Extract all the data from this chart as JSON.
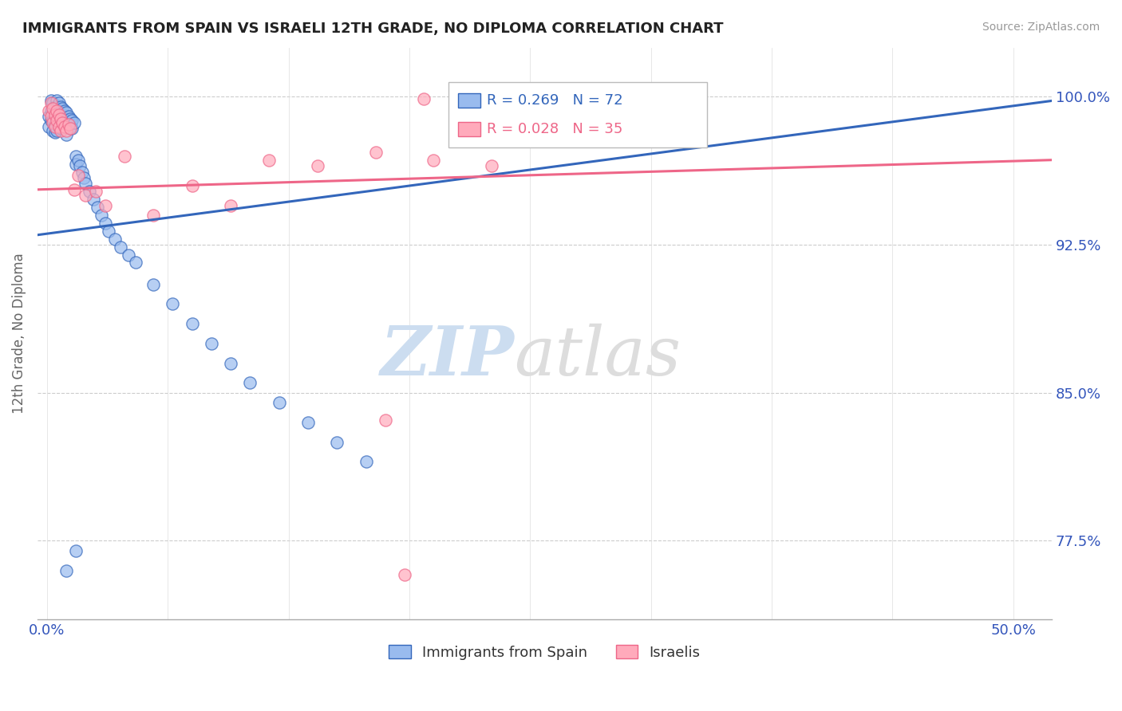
{
  "title": "IMMIGRANTS FROM SPAIN VS ISRAELI 12TH GRADE, NO DIPLOMA CORRELATION CHART",
  "source": "Source: ZipAtlas.com",
  "ylabel": "12th Grade, No Diploma",
  "legend_blue_label": "Immigrants from Spain",
  "legend_pink_label": "Israelis",
  "R_blue": 0.269,
  "N_blue": 72,
  "R_pink": 0.028,
  "N_pink": 35,
  "blue_color": "#99BBEE",
  "pink_color": "#FFAABB",
  "blue_line_color": "#3366BB",
  "pink_line_color": "#EE6688",
  "ymin": 0.735,
  "ymax": 1.025,
  "xmin": -0.005,
  "xmax": 0.52,
  "blue_scatter_x": [
    0.001,
    0.001,
    0.002,
    0.002,
    0.002,
    0.003,
    0.003,
    0.003,
    0.003,
    0.004,
    0.004,
    0.004,
    0.004,
    0.005,
    0.005,
    0.005,
    0.005,
    0.005,
    0.006,
    0.006,
    0.006,
    0.006,
    0.007,
    0.007,
    0.007,
    0.007,
    0.008,
    0.008,
    0.008,
    0.009,
    0.009,
    0.009,
    0.01,
    0.01,
    0.01,
    0.01,
    0.011,
    0.011,
    0.012,
    0.012,
    0.013,
    0.013,
    0.014,
    0.015,
    0.015,
    0.016,
    0.017,
    0.018,
    0.019,
    0.02,
    0.022,
    0.024,
    0.026,
    0.028,
    0.03,
    0.032,
    0.035,
    0.038,
    0.042,
    0.046,
    0.055,
    0.065,
    0.075,
    0.085,
    0.095,
    0.105,
    0.12,
    0.135,
    0.15,
    0.165,
    0.01,
    0.015
  ],
  "blue_scatter_y": [
    0.99,
    0.985,
    0.998,
    0.993,
    0.988,
    0.997,
    0.992,
    0.988,
    0.983,
    0.995,
    0.99,
    0.986,
    0.982,
    0.998,
    0.995,
    0.991,
    0.987,
    0.983,
    0.997,
    0.993,
    0.989,
    0.985,
    0.995,
    0.992,
    0.988,
    0.984,
    0.994,
    0.99,
    0.986,
    0.993,
    0.989,
    0.985,
    0.992,
    0.988,
    0.985,
    0.981,
    0.99,
    0.986,
    0.989,
    0.985,
    0.988,
    0.984,
    0.987,
    0.97,
    0.966,
    0.968,
    0.965,
    0.962,
    0.959,
    0.956,
    0.952,
    0.948,
    0.944,
    0.94,
    0.936,
    0.932,
    0.928,
    0.924,
    0.92,
    0.916,
    0.905,
    0.895,
    0.885,
    0.875,
    0.865,
    0.855,
    0.845,
    0.835,
    0.825,
    0.815,
    0.76,
    0.77
  ],
  "pink_scatter_x": [
    0.001,
    0.002,
    0.002,
    0.003,
    0.003,
    0.004,
    0.004,
    0.005,
    0.005,
    0.006,
    0.006,
    0.007,
    0.007,
    0.008,
    0.009,
    0.01,
    0.011,
    0.012,
    0.014,
    0.016,
    0.02,
    0.025,
    0.03,
    0.04,
    0.055,
    0.075,
    0.095,
    0.115,
    0.14,
    0.17,
    0.2,
    0.23,
    0.175,
    0.185,
    0.195
  ],
  "pink_scatter_y": [
    0.993,
    0.997,
    0.99,
    0.994,
    0.987,
    0.991,
    0.985,
    0.993,
    0.988,
    0.991,
    0.985,
    0.989,
    0.983,
    0.987,
    0.985,
    0.983,
    0.986,
    0.984,
    0.953,
    0.96,
    0.95,
    0.952,
    0.945,
    0.97,
    0.94,
    0.955,
    0.945,
    0.968,
    0.965,
    0.972,
    0.968,
    0.965,
    0.836,
    0.758,
    0.999
  ],
  "blue_trendline_x": [
    -0.005,
    0.52
  ],
  "blue_trendline_y": [
    0.93,
    0.998
  ],
  "pink_trendline_x": [
    -0.005,
    0.52
  ],
  "pink_trendline_y": [
    0.953,
    0.968
  ]
}
